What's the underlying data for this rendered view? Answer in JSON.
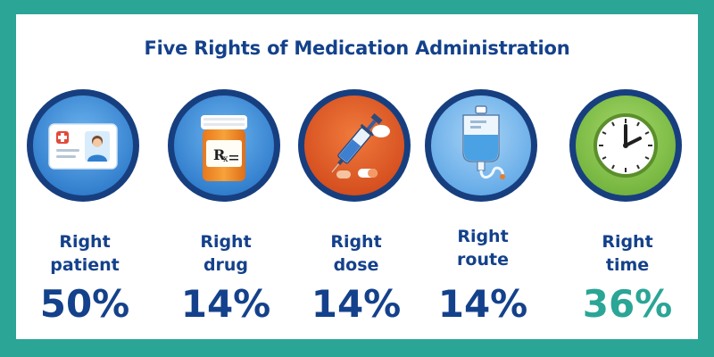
{
  "title": "Five Rights of Medication Administration",
  "colors": {
    "primary": "#14418b",
    "accent": "#2aa596",
    "background": "#ffffff",
    "frame": "#2aa596"
  },
  "items": [
    {
      "label_line1": "Right",
      "label_line2": "patient",
      "value": "50%",
      "icon": "patient-id-card-icon"
    },
    {
      "label_line1": "Right",
      "label_line2": "drug",
      "value": "14%",
      "icon": "rx-pill-bottle-icon"
    },
    {
      "label_line1": "Right",
      "label_line2": "dose",
      "value": "14%",
      "icon": "syringe-pills-icon"
    },
    {
      "label_line1": "Right",
      "label_line2": "route",
      "value": "14%",
      "icon": "iv-bag-icon"
    },
    {
      "label_line1": "Right",
      "label_line2": "time",
      "value": "36%",
      "icon": "clock-icon"
    }
  ]
}
